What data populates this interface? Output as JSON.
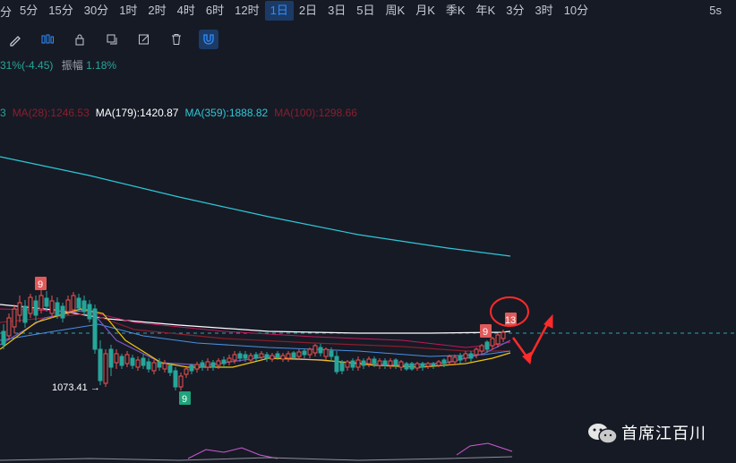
{
  "intervals": {
    "partial_label": "分",
    "items": [
      "5分",
      "15分",
      "30分",
      "1时",
      "2时",
      "4时",
      "6时",
      "12时",
      "1日",
      "2日",
      "3日",
      "5日",
      "周K",
      "月K",
      "季K",
      "年K",
      "3分",
      "3时",
      "10分"
    ],
    "active": "1日",
    "refresh": "5s"
  },
  "tools": [
    {
      "icon": "pencil-icon",
      "active": false
    },
    {
      "icon": "candlestick-icon",
      "active": false
    },
    {
      "icon": "lock-icon",
      "active": false
    },
    {
      "icon": "copy-icon",
      "active": false
    },
    {
      "icon": "edit-icon",
      "active": false
    },
    {
      "icon": "trash-icon",
      "active": false
    },
    {
      "icon": "magnet-icon",
      "active": true
    }
  ],
  "quote": {
    "change": "31%(-4.45)",
    "amplitude_label": "振幅",
    "amplitude_value": "1.18%"
  },
  "ma": [
    {
      "label": "3",
      "color": "#26a69a"
    },
    {
      "label": "MA(28):1246.53",
      "color": "#8b1e2d"
    },
    {
      "label": "MA(179):1420.87",
      "color": "#ffffff"
    },
    {
      "label": "MA(359):1888.82",
      "color": "#2ec7d6"
    },
    {
      "label": "MA(100):1298.66",
      "color": "#8b1e2d"
    }
  ],
  "annotations": {
    "low_price": "1073.41",
    "low_arrow": "→",
    "td_markers": [
      "9",
      "9",
      "9",
      "13"
    ]
  },
  "watermark": "首席江百川",
  "colors": {
    "bg": "#161a25",
    "up": "#ef5350",
    "down": "#26a69a",
    "ma359": "#2ec7d6",
    "ma179": "#ffffff",
    "ma28": "#8b1e2d",
    "fast_ma": "#f1c40f",
    "mid_ma": "#7e57c2",
    "ref_line": "#2ec7d6",
    "annotation": "#ff2a2a"
  }
}
